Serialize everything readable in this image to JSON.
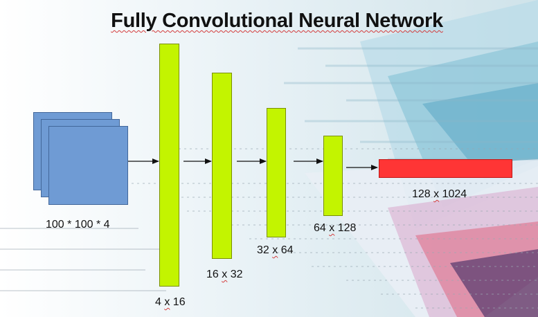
{
  "title": "Fully Convolutional Neural Network",
  "input_label": "100 * 100 * 4",
  "layers": [
    {
      "pre": "4 ",
      "x": "x",
      "post": " 16"
    },
    {
      "pre": "16 ",
      "x": "x",
      "post": " 32"
    },
    {
      "pre": "32 ",
      "x": "x",
      "post": " 64"
    },
    {
      "pre": "64 ",
      "x": "x",
      "post": " 128"
    }
  ],
  "output": {
    "pre": "128 ",
    "x": "x",
    "post": " 1024"
  },
  "colors": {
    "input": "#6f9bd4",
    "layer": "#c3f400",
    "output": "#ff3535"
  }
}
